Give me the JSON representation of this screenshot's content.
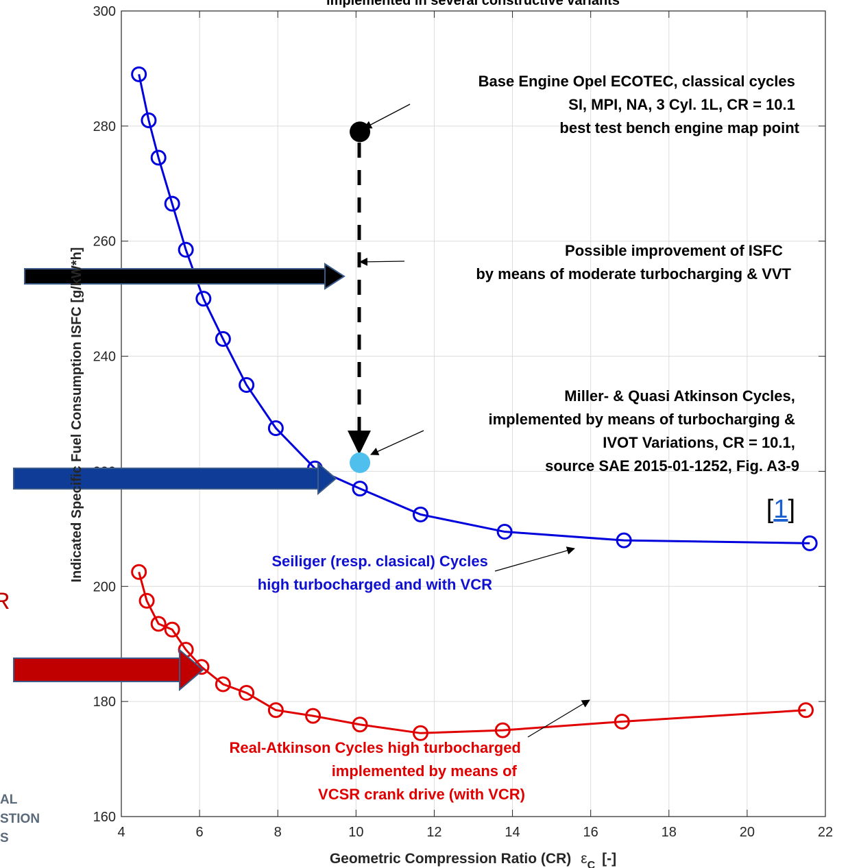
{
  "chart_data": {
    "type": "line",
    "title": "implemented in several constructive variants",
    "xlabel": "Geometric Compression Ratio (CR)",
    "xlabel_symbol": "ε",
    "xlabel_symbol_sub": "C",
    "xlabel_unit": "[-]",
    "ylabel": "Indicated Specific Fuel Consumption ISFC [g/kW*h]",
    "xlim": [
      4,
      22
    ],
    "ylim": [
      160,
      300
    ],
    "xticks": [
      4,
      6,
      8,
      10,
      12,
      14,
      16,
      18,
      20,
      22
    ],
    "yticks": [
      160,
      180,
      200,
      220,
      240,
      260,
      280,
      300
    ],
    "grid": true,
    "series": [
      {
        "color": "#0000dd",
        "marker": "open-circle",
        "x": [
          4.45,
          4.7,
          4.95,
          5.3,
          5.65,
          6.1,
          6.6,
          7.2,
          7.95,
          8.95,
          10.1,
          11.65,
          13.8,
          16.85,
          21.6
        ],
        "y": [
          289,
          281,
          274.5,
          266.5,
          258.5,
          250,
          243,
          235,
          227.5,
          220.5,
          217,
          212.5,
          209.5,
          208,
          207.5
        ]
      },
      {
        "color": "#e00000",
        "marker": "open-circle",
        "x": [
          4.45,
          4.65,
          4.95,
          5.3,
          5.65,
          6.05,
          6.6,
          7.2,
          7.95,
          8.9,
          10.1,
          11.65,
          13.75,
          16.8,
          21.5
        ],
        "y": [
          202.5,
          197.5,
          193.5,
          192.5,
          189,
          186,
          183,
          181.5,
          178.5,
          177.5,
          176,
          174.5,
          175,
          176.5,
          178.5
        ]
      }
    ],
    "points": [
      {
        "x": 10.1,
        "y": 279,
        "color": "#000000"
      },
      {
        "x": 10.1,
        "y": 221.5,
        "color": "#4fc0ee"
      }
    ],
    "annotations": {
      "base_engine": [
        "Base Engine Opel ECOTEC, classical cycles",
        "SI, MPI, NA, 3 Cyl. 1L, CR = 10.1",
        "best test bench engine map point"
      ],
      "improvement": [
        "Possible improvement of ISFC",
        "by means of moderate turbocharging & VVT"
      ],
      "miller": [
        "Miller- & Quasi Atkinson Cycles,",
        "implemented by means of turbocharging &",
        "IVOT Variations, CR = 10.1,",
        "source SAE 2015-01-1252,  Fig. A3-9"
      ],
      "seiliger": [
        "Seiliger (resp. clasical) Cycles",
        "high turbocharged and with VCR"
      ],
      "real_atkinson": [
        "Real-Atkinson Cycles high turbocharged",
        "implemented by means of",
        "VCSR crank drive (with VCR)"
      ]
    },
    "reference": {
      "open": "[",
      "number": "1",
      "close": "]"
    },
    "logo_text": [
      "AL",
      "STION",
      "S"
    ],
    "side_letter": "R",
    "colors": {
      "blue_curve": "#0000dd",
      "red_curve": "#e00000",
      "black_arrow": "#000000",
      "blue_arrow": "#0f3c96",
      "red_arrow": "#c00000",
      "link": "#1a5fd0"
    }
  }
}
